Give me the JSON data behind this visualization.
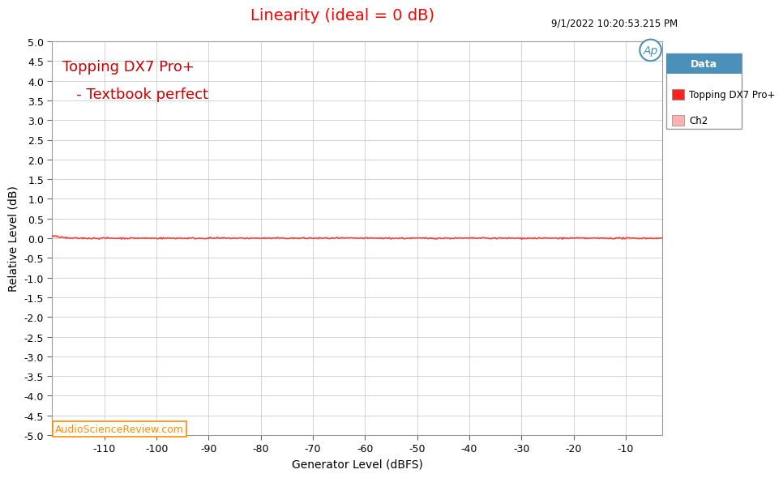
{
  "title": "Linearity (ideal = 0 dB)",
  "title_color": "#FF0000",
  "xlabel": "Generator Level (dBFS)",
  "ylabel": "Relative Level (dB)",
  "xlim": [
    -120,
    -3
  ],
  "ylim": [
    -5.0,
    5.0
  ],
  "xticks": [
    -110,
    -100,
    -90,
    -80,
    -70,
    -60,
    -50,
    -40,
    -30,
    -20,
    -10
  ],
  "yticks": [
    -5.0,
    -4.5,
    -4.0,
    -3.5,
    -3.0,
    -2.5,
    -2.0,
    -1.5,
    -1.0,
    -0.5,
    0.0,
    0.5,
    1.0,
    1.5,
    2.0,
    2.5,
    3.0,
    3.5,
    4.0,
    4.5,
    5.0
  ],
  "timestamp": "9/1/2022 10:20:53.215 PM",
  "annotation_line1": "Topping DX7 Pro+",
  "annotation_line2": "   - Textbook perfect",
  "annotation_color": "#CC0000",
  "watermark": "AudioScienceReview.com",
  "watermark_color": "#FF8C00",
  "watermark_bg": "#FFFFFF",
  "legend_title": "Data",
  "legend_title_bg": "#4A90B8",
  "legend_entries": [
    "Topping DX7 Pro+",
    "Ch2"
  ],
  "legend_colors": [
    "#FF2020",
    "#FFB0B0"
  ],
  "ch1_color": "#FF3333",
  "ch2_color": "#FFB0B0",
  "background_color": "#FFFFFF",
  "plot_bg_color": "#FFFFFF",
  "grid_color": "#CCCCCC",
  "ap_logo_color": "#4A90B8",
  "figsize": [
    9.5,
    6.0
  ],
  "dpi": 100
}
